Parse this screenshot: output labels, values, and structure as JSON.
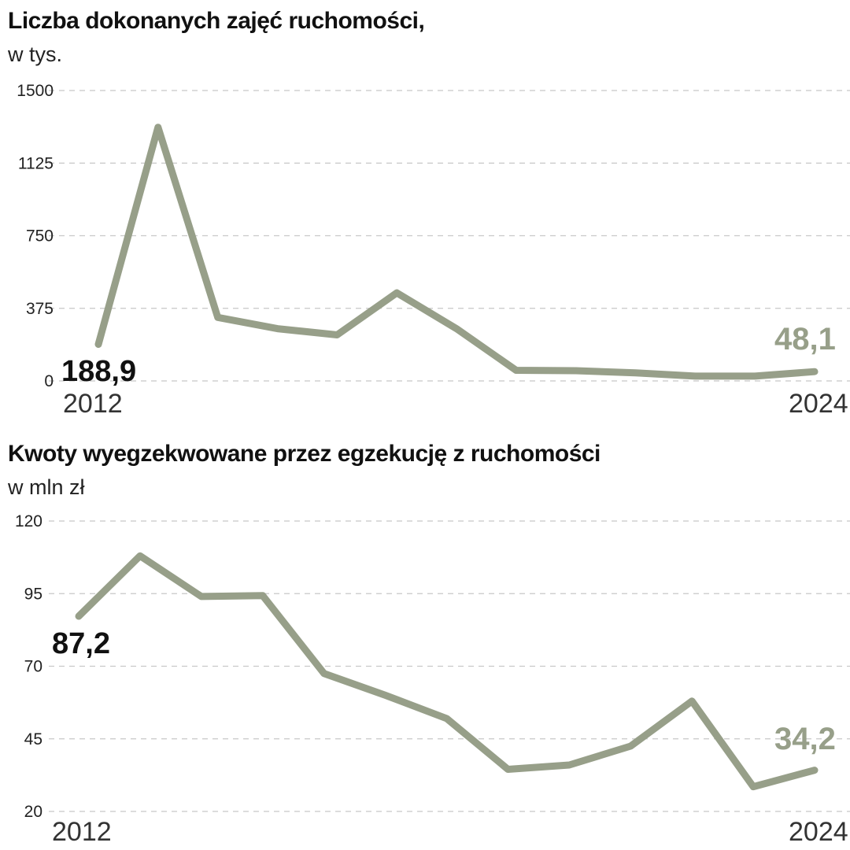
{
  "colors": {
    "line": "#979f89",
    "end_label": "#979f89",
    "text": "#111111",
    "grid": "#c8c8c8"
  },
  "chart_data": [
    {
      "type": "line",
      "title": "Liczba dokonanych zajęć ruchomości,",
      "subtitle": "w tys.",
      "x": [
        2012,
        2013,
        2014,
        2015,
        2016,
        2017,
        2018,
        2019,
        2020,
        2021,
        2022,
        2023,
        2024
      ],
      "x_first_label": "2012",
      "x_last_label": "2024",
      "series": [
        {
          "values": [
            188.9,
            1310,
            328,
            270,
            238,
            455,
            270,
            55,
            53,
            42,
            25,
            25,
            48.1
          ]
        }
      ],
      "ylim": [
        0,
        1500
      ],
      "yticks": [
        "1500",
        "1125",
        "750",
        "375",
        "0"
      ],
      "ytick_values": [
        1500,
        1125,
        750,
        375,
        0
      ],
      "grid": true,
      "start_label": "188,9",
      "end_label": "48,1"
    },
    {
      "type": "line",
      "title": "Kwoty wyegzekwowane przez egzekucję z ruchomości",
      "subtitle": "w mln zł",
      "x": [
        2012,
        2013,
        2014,
        2015,
        2016,
        2017,
        2018,
        2019,
        2020,
        2021,
        2022,
        2023,
        2024
      ],
      "x_first_label": "2012",
      "x_last_label": "2024",
      "series": [
        {
          "values": [
            87.2,
            108,
            94,
            94.3,
            67.5,
            60,
            52,
            34.5,
            36,
            42.5,
            58,
            28.5,
            34.2
          ]
        }
      ],
      "ylim": [
        20,
        120
      ],
      "yticks": [
        "120",
        "95",
        "70",
        "45",
        "20"
      ],
      "ytick_values": [
        120,
        95,
        70,
        45,
        20
      ],
      "grid": true,
      "start_label": "87,2",
      "end_label": "34,2"
    }
  ]
}
